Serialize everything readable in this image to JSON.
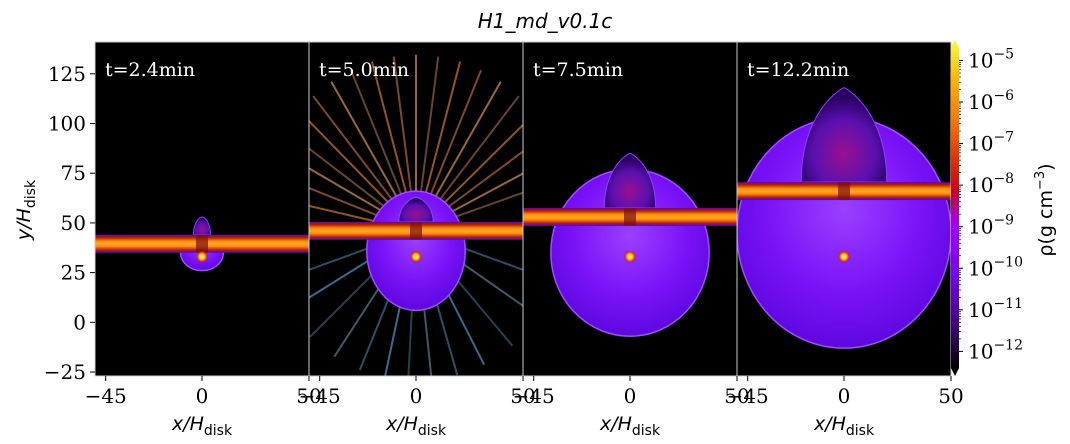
{
  "chart_data": {
    "type": "heatmap",
    "title": "H1_md_v0.1c",
    "ylabel": {
      "base": "y/H",
      "sub": "disk"
    },
    "xlabel": {
      "base": "x/H",
      "sub": "disk"
    },
    "xlim": [
      -50,
      50
    ],
    "ylim": [
      -27,
      141
    ],
    "xticks": [
      {
        "value": -45,
        "label": "−45"
      },
      {
        "value": 0,
        "label": "0"
      },
      {
        "value": 50,
        "label": "50"
      }
    ],
    "yticks": [
      -25,
      0,
      25,
      50,
      75,
      100,
      125
    ],
    "colorbar": {
      "label": "ρ(g cm",
      "label_exp": "−3",
      "label_close": ")",
      "scale": "log",
      "ticks": [
        {
          "exp": -5,
          "base": "10",
          "sup": "−5"
        },
        {
          "exp": -6,
          "base": "10",
          "sup": "−6"
        },
        {
          "exp": -7,
          "base": "10",
          "sup": "−7"
        },
        {
          "exp": -8,
          "base": "10",
          "sup": "−8"
        },
        {
          "exp": -9,
          "base": "10",
          "sup": "−9"
        },
        {
          "exp": -10,
          "base": "10",
          "sup": "−10"
        },
        {
          "exp": -11,
          "base": "10",
          "sup": "−11"
        },
        {
          "exp": -12,
          "base": "10",
          "sup": "−12"
        }
      ],
      "range": [
        -12.4,
        -4.7
      ]
    },
    "panels": [
      {
        "time": "t=2.4min",
        "disk_y": 39.5,
        "disk_half": 4.5,
        "bh_y": 33,
        "bubble_ry": 9,
        "bubble_rx": 10,
        "bubble_cy": 35,
        "cap_top": 53,
        "cap_rx": 4,
        "jets": false
      },
      {
        "time": "t=5.0min",
        "disk_y": 46,
        "disk_half": 4.5,
        "bh_y": 33,
        "bubble_ry": 30,
        "bubble_rx": 23,
        "bubble_cy": 36,
        "cap_top": 63,
        "cap_rx": 8,
        "jets": true
      },
      {
        "time": "t=7.5min",
        "disk_y": 53,
        "disk_half": 4.5,
        "bh_y": 33,
        "bubble_ry": 42,
        "bubble_rx": 37,
        "bubble_cy": 35,
        "cap_top": 85,
        "cap_rx": 12,
        "jets": false
      },
      {
        "time": "t=12.2min",
        "disk_y": 66,
        "disk_half": 4.5,
        "bh_y": 33,
        "bubble_ry": 58,
        "bubble_rx": 50,
        "bubble_cy": 45,
        "cap_top": 118,
        "cap_rx": 20,
        "jets": false
      }
    ],
    "colors": {
      "background": "#000000",
      "bubble": "#7a10ff",
      "bubble_edge": "#a24bff",
      "disk_core": "#ff9a1a",
      "disk_mid": "#d43800",
      "disk_edge": "#5a00cc",
      "bh": "#ffe85a"
    }
  }
}
